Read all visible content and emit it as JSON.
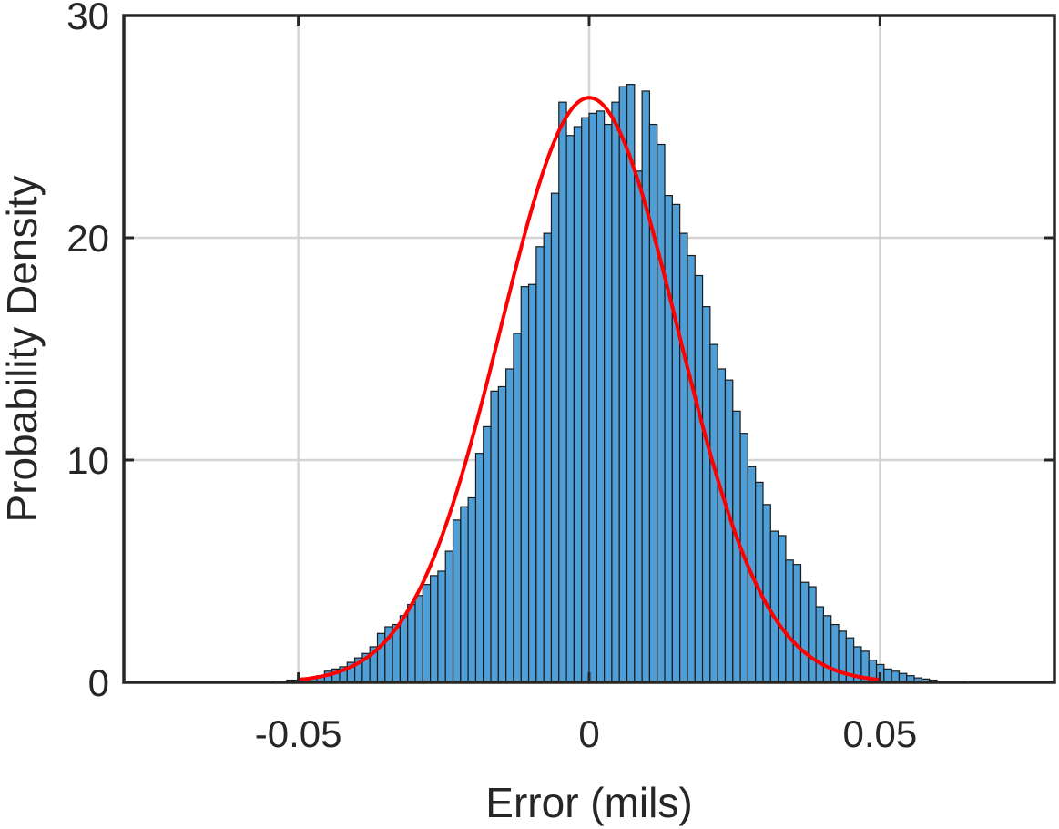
{
  "chart_data": {
    "type": "bar",
    "title": "",
    "xlabel": "Error (mils)",
    "ylabel": "Probability Density",
    "xlim": [
      -0.08,
      0.08
    ],
    "ylim": [
      0,
      30
    ],
    "xticks": [
      -0.05,
      0,
      0.05
    ],
    "xtick_labels": [
      "-0.05",
      "0",
      "0.05"
    ],
    "yticks": [
      0,
      10,
      20,
      30
    ],
    "ytick_labels": [
      "0",
      "10",
      "20",
      "30"
    ],
    "grid": true,
    "colors": {
      "bars": "#4f9fd6",
      "bar_edge": "#1a1a1a",
      "fit": "#ff0000"
    },
    "bin_start": -0.0546,
    "bin_width": 0.0013,
    "bin_values": [
      0.05,
      0.05,
      0.1,
      0.1,
      0.2,
      0.2,
      0.3,
      0.5,
      0.6,
      0.7,
      0.9,
      1.1,
      1.3,
      1.6,
      2.2,
      2.5,
      2.6,
      3.0,
      3.5,
      3.9,
      4.4,
      4.8,
      5.0,
      5.9,
      7.3,
      7.9,
      8.3,
      10.3,
      11.5,
      13.1,
      13.3,
      14.1,
      15.7,
      17.8,
      17.9,
      19.6,
      20.2,
      22.0,
      26.1,
      24.6,
      25.0,
      25.4,
      25.6,
      25.7,
      25.1,
      26.1,
      26.8,
      26.9,
      23.0,
      26.6,
      25.1,
      24.2,
      21.9,
      21.5,
      20.2,
      19.2,
      18.3,
      16.9,
      15.2,
      14.1,
      13.6,
      12.2,
      11.2,
      9.7,
      9.0,
      8.0,
      6.8,
      6.6,
      5.5,
      5.3,
      4.5,
      4.3,
      3.4,
      3.0,
      2.6,
      2.3,
      2.0,
      1.6,
      1.4,
      1.0,
      0.8,
      0.6,
      0.5,
      0.4,
      0.3,
      0.2,
      0.15,
      0.1,
      0.05,
      0.05,
      0.05,
      0.05
    ],
    "fit": {
      "type": "normal",
      "mean": 0.0,
      "sigma": 0.0152,
      "peak": 26.3
    }
  }
}
